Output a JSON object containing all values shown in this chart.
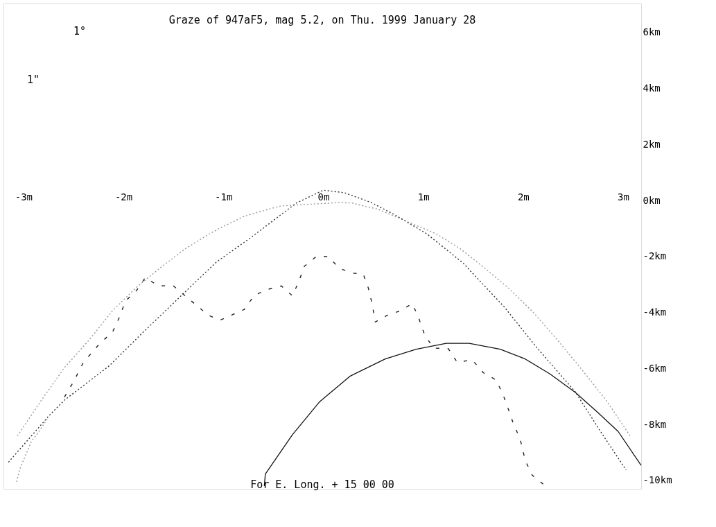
{
  "chart_data": {
    "type": "line",
    "title": "Graze of 947aF5, mag 5.2, on Thu. 1999 January 28",
    "xlim": [
      -3.2,
      3.18
    ],
    "ylim": [
      -10.3,
      7.04
    ],
    "xticks": [
      {
        "value": -3,
        "label": "-3m"
      },
      {
        "value": -2,
        "label": "-2m"
      },
      {
        "value": -1,
        "label": "-1m"
      },
      {
        "value": 0,
        "label": "0m"
      },
      {
        "value": 1,
        "label": "1m"
      },
      {
        "value": 2,
        "label": "2m"
      },
      {
        "value": 3,
        "label": "3m"
      }
    ],
    "yticks": [
      {
        "value": 6,
        "label": "6km"
      },
      {
        "value": 4,
        "label": "4km"
      },
      {
        "value": 2,
        "label": "2km"
      },
      {
        "value": 0,
        "label": "0km"
      },
      {
        "value": -2,
        "label": "-2km"
      },
      {
        "value": -4,
        "label": "-4km"
      },
      {
        "value": -6,
        "label": "-6km"
      },
      {
        "value": -8,
        "label": "-8km"
      },
      {
        "value": -10,
        "label": "-10km"
      }
    ],
    "grid": false,
    "marker": "none",
    "annotations": [
      "1°",
      "1\"",
      "For E. Long. + 15 00 00"
    ],
    "series": [
      {
        "color": "#999999",
        "line_style": "dotted",
        "x": [
          -3.06,
          -2.82,
          -2.59,
          -2.34,
          -2.11,
          -1.87,
          -1.63,
          -1.38,
          -1.15,
          -1.03,
          -0.79,
          -0.54,
          -0.42,
          0.17,
          0.29,
          0.42,
          0.54,
          1.13,
          1.37,
          1.61,
          1.85,
          2.1,
          2.34,
          2.58,
          2.83,
          3.07
        ],
        "values": [
          -8.41,
          -7.13,
          -5.97,
          -4.97,
          -3.94,
          -3.1,
          -2.4,
          -1.72,
          -1.21,
          -0.98,
          -0.56,
          -0.3,
          -0.19,
          -0.07,
          -0.09,
          -0.21,
          -0.3,
          -1.19,
          -1.72,
          -2.4,
          -3.12,
          -3.99,
          -4.97,
          -6.01,
          -7.13,
          -8.41
        ]
      },
      {
        "color": "#999999",
        "line_style": "dotted",
        "x": [
          -3.07,
          -3.03,
          -2.98,
          -2.92,
          -2.84,
          -2.76
        ],
        "values": [
          -10.05,
          -9.53,
          -9.11,
          -8.6,
          -8.23,
          -7.79
        ]
      },
      {
        "color": "#333333",
        "line_style": "dotted",
        "x": [
          -3.15,
          -2.74,
          -2.59,
          -2.14,
          -1.81,
          -1.39,
          -1.07,
          -0.72,
          -0.27,
          0.0,
          0.21,
          0.48,
          0.73,
          1.04,
          1.4,
          1.81,
          2.14,
          2.52,
          2.77,
          3.03
        ],
        "values": [
          -9.35,
          -7.67,
          -7.13,
          -5.9,
          -4.73,
          -3.29,
          -2.2,
          -1.31,
          -0.09,
          0.37,
          0.28,
          -0.07,
          -0.54,
          -1.2,
          -2.24,
          -3.8,
          -5.27,
          -6.83,
          -8.23,
          -9.63
        ]
      },
      {
        "color": "#222222",
        "line_style": "dashed",
        "x": [
          -2.59,
          -2.5,
          -2.4,
          -2.23,
          -2.11,
          -2.04,
          -1.98,
          -1.87,
          -1.78,
          -1.65,
          -1.5,
          -1.28,
          -1.15,
          -1.03,
          -0.91,
          -0.79,
          -0.69,
          -0.55,
          -0.42,
          -0.31,
          -0.25,
          -0.19,
          -0.07,
          0.05,
          0.16,
          0.29,
          0.4,
          0.45,
          0.49,
          0.52,
          0.64,
          0.77,
          0.89,
          0.95,
          1.01,
          1.1,
          1.25,
          1.34,
          1.49,
          1.6,
          1.73,
          1.8,
          1.85,
          1.9,
          1.97,
          2.02,
          2.09,
          2.21
        ],
        "values": [
          -7.02,
          -6.48,
          -5.78,
          -5.08,
          -4.71,
          -4.17,
          -3.59,
          -3.22,
          -2.75,
          -3.05,
          -3.05,
          -3.71,
          -4.1,
          -4.27,
          -4.08,
          -3.89,
          -3.38,
          -3.17,
          -3.05,
          -3.4,
          -2.94,
          -2.35,
          -2.0,
          -2.0,
          -2.42,
          -2.59,
          -2.63,
          -3.12,
          -3.71,
          -4.34,
          -4.1,
          -3.94,
          -3.68,
          -4.15,
          -4.76,
          -5.27,
          -5.29,
          -5.78,
          -5.69,
          -6.15,
          -6.41,
          -6.95,
          -7.44,
          -7.95,
          -8.53,
          -9.28,
          -9.81,
          -10.16
        ]
      },
      {
        "color": "#111111",
        "line_style": "solid",
        "x": [
          -0.59,
          -0.58,
          -0.31,
          -0.04,
          0.27,
          0.62,
          0.93,
          1.23,
          1.46,
          1.77,
          2.02,
          2.27,
          2.52,
          2.74,
          2.95,
          3.18
        ],
        "values": [
          -10.2,
          -9.77,
          -8.37,
          -7.2,
          -6.27,
          -5.66,
          -5.31,
          -5.1,
          -5.1,
          -5.31,
          -5.66,
          -6.2,
          -6.85,
          -7.55,
          -8.25,
          -9.46
        ]
      }
    ]
  }
}
